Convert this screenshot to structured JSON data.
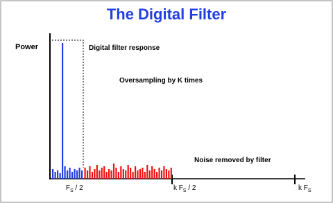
{
  "chart_data": {
    "type": "bar",
    "title": "The Digital Filter",
    "ylabel": "Power",
    "annotations": [
      "Digital filter response",
      "Oversampling by K times",
      "Noise removed  by  filter"
    ],
    "xlabels": [
      {
        "pre": "F",
        "sub": "S",
        "post": " / 2"
      },
      {
        "pre": "k F",
        "sub": "S",
        "post": " / 2"
      },
      {
        "pre": "k F",
        "sub": "S",
        "post": ""
      }
    ],
    "ylim": [
      0,
      200
    ],
    "series": [
      {
        "color": "#1f3fe0",
        "values": [
          14,
          10,
          12,
          8,
          196,
          18,
          12,
          16,
          10,
          14,
          12,
          16,
          12
        ]
      },
      {
        "color": "#ee1111",
        "values": [
          16,
          12,
          18,
          10,
          14,
          20,
          12,
          16,
          18,
          10,
          14,
          12,
          22,
          16,
          10,
          18,
          14,
          12,
          20,
          16,
          10,
          18,
          12,
          14,
          16,
          10,
          20,
          12,
          18,
          14,
          10,
          16,
          12,
          18,
          14,
          12,
          16
        ]
      }
    ]
  }
}
